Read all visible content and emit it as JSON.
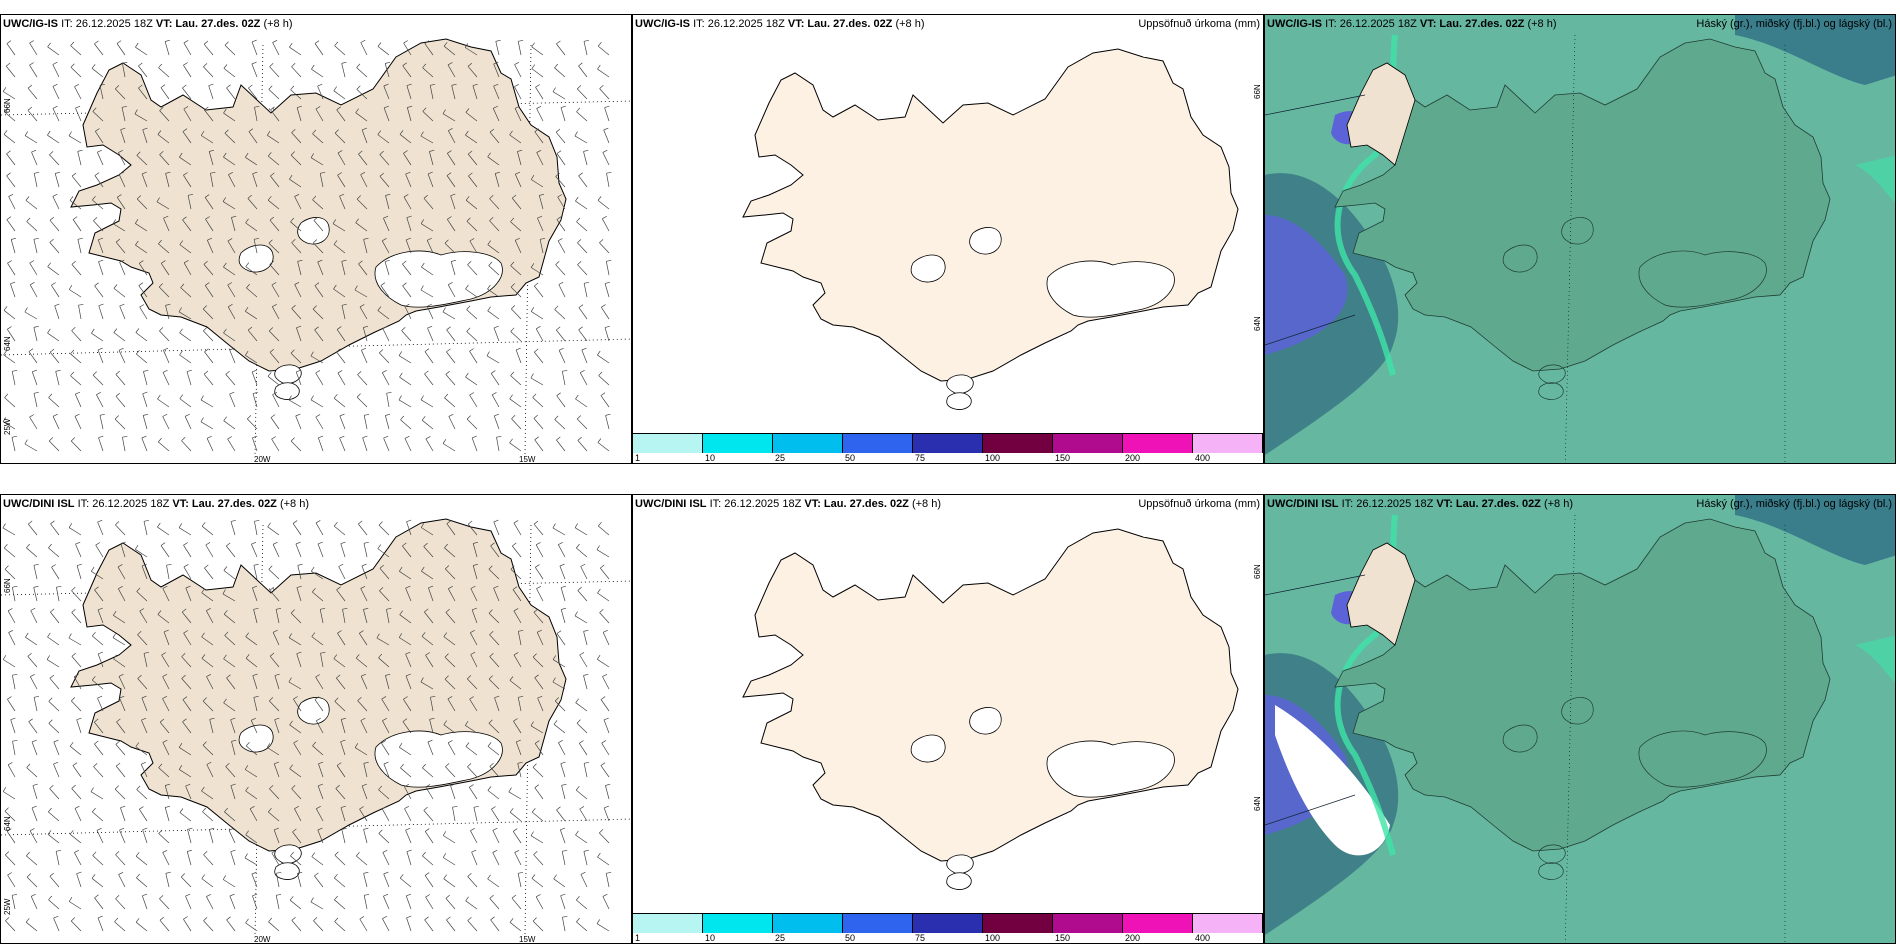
{
  "colors": {
    "land": "#efe2d0",
    "land_plain": "#fdf1e4",
    "sea_cloud": "#65b7a0",
    "land_cloud": "#5fa98e",
    "high_cloud": "#5c63d8",
    "colorbar": [
      "#b7f5f3",
      "#00e6ef",
      "#00bfef",
      "#2f64ef",
      "#2a2fb0",
      "#720040",
      "#b00a8e",
      "#ef12b7",
      "#f6b2f6"
    ]
  },
  "rows": [
    {
      "wind": {
        "model": "UWC/IG-IS",
        "it": "IT: 26.12.2025 18Z",
        "vt_label": "VT:",
        "vt": "Lau. 27.des. 02Z",
        "lead": "(+8 h)"
      },
      "precip": {
        "model": "UWC/IG-IS",
        "it": "IT: 26.12.2025 18Z",
        "vt_label": "VT:",
        "vt": "Lau. 27.des. 02Z",
        "lead": "(+8 h)",
        "title": "Uppsöfnuð úrkoma (mm)"
      },
      "cloud": {
        "model": "UWC/IG-IS",
        "it": "IT: 26.12.2025 18Z",
        "vt_label": "VT:",
        "vt": "Lau. 27.des. 02Z",
        "lead": "(+8 h)",
        "title": "Háský (gr.), miðský (fj.bl.) og lágský (bl.)"
      }
    },
    {
      "wind": {
        "model": "UWC/DINI ISL",
        "it": "IT: 26.12.2025 18Z",
        "vt_label": "VT:",
        "vt": "Lau. 27.des. 02Z",
        "lead": "(+8 h)"
      },
      "precip": {
        "model": "UWC/DINI ISL",
        "it": "IT: 26.12.2025 18Z",
        "vt_label": "VT:",
        "vt": "Lau. 27.des. 02Z",
        "lead": "(+8 h)",
        "title": "Uppsöfnuð úrkoma (mm)"
      },
      "cloud": {
        "model": "UWC/DINI ISL",
        "it": "IT: 26.12.2025 18Z",
        "vt_label": "VT:",
        "vt": "Lau. 27.des. 02Z",
        "lead": "(+8 h)",
        "title": "Háský (gr.), miðský (fj.bl.) og lágský (bl.)"
      }
    }
  ],
  "axes": {
    "lon_20": "20W",
    "lon_15": "15W",
    "lat_66": "66N",
    "lat_64": "64N",
    "lon_25": "25W"
  },
  "colorbar_labels": [
    "1",
    "10",
    "25",
    "50",
    "75",
    "100",
    "150",
    "200",
    "400"
  ]
}
